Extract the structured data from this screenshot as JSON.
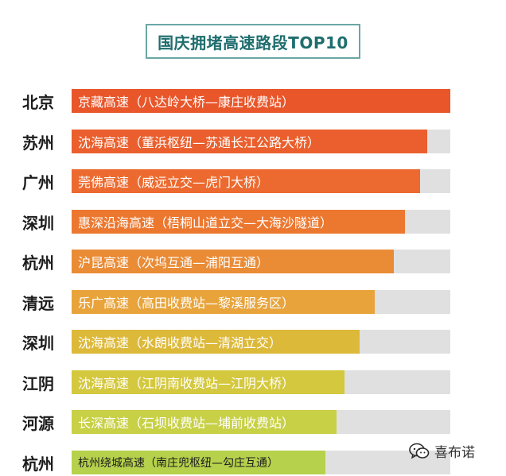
{
  "chart_data": {
    "type": "bar",
    "orientation": "horizontal",
    "title": "国庆拥堵高速路段TOP10",
    "xlabel": "",
    "ylabel": "",
    "xlim": [
      0,
      100
    ],
    "grid": false,
    "legend": "none",
    "categories": [
      "北京",
      "苏州",
      "广州",
      "深圳",
      "杭州",
      "清远",
      "深圳",
      "江阴",
      "河源",
      "杭州"
    ],
    "data_labels": [
      "京藏高速（八达岭大桥—康庄收费站）",
      "沈海高速（董浜枢纽—苏通长江公路大桥）",
      "莞佛高速（威远立交—虎门大桥）",
      "惠深沿海高速（梧桐山道立交—大海沙隧道）",
      "沪昆高速（次坞互通—浦阳互通）",
      "乐广高速（高田收费站—黎溪服务区）",
      "沈海高速（水朗收费站—清湖立交）",
      "沈海高速（江阴南收费站—江阴大桥）",
      "长深高速（石坝收费站—埔前收费站）",
      "杭州绕城高速（南庄兜枢纽—勾庄互通）"
    ],
    "values": [
      100,
      94,
      92,
      88,
      85,
      80,
      76,
      72,
      70,
      67
    ],
    "colors": [
      "#e8562a",
      "#ea5f2d",
      "#ec6a2f",
      "#ec7830",
      "#ea8c36",
      "#e8a43b",
      "#ddb93a",
      "#d4c83f",
      "#c8d046",
      "#b6d24c"
    ]
  },
  "watermark": {
    "text": "喜布诺",
    "icon": "wechat-icon",
    "icon_color": "#2b2b2b"
  },
  "colors": {
    "track": "#e0e0e0",
    "title_border": "#6aa7a4",
    "title_text": "#1f6e6e"
  }
}
